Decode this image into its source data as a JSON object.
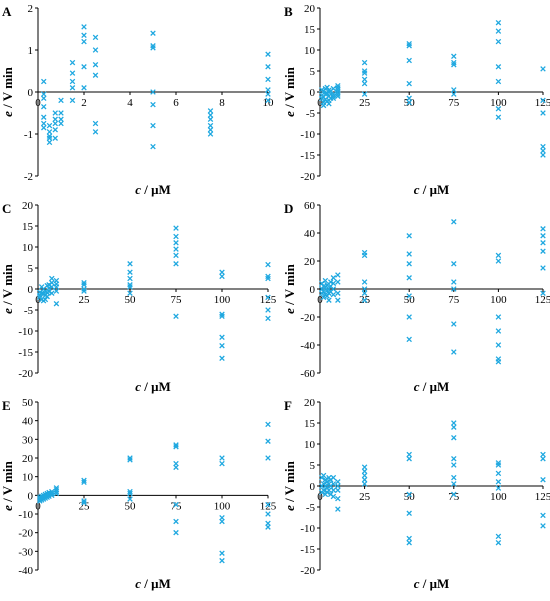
{
  "figure": {
    "marker_color": "#1fa8e0"
  },
  "chart_data": [
    {
      "panel": "A",
      "type": "scatter",
      "title": "",
      "xlabel_var": "c",
      "xlabel_unit": " / μM",
      "ylabel_var": "e",
      "ylabel_unit": " / V min",
      "xlim": [
        0,
        10
      ],
      "ylim": [
        -2,
        2
      ],
      "xticks": [
        0,
        2,
        4,
        6,
        8,
        10
      ],
      "yticks": [
        -2,
        -1,
        0,
        1,
        2
      ],
      "grid": false,
      "series": [
        {
          "x": [
            0.25,
            0.25,
            0.25,
            0.25,
            0.25,
            0.25,
            0.25,
            0.5,
            0.5,
            0.5,
            0.5,
            0.5,
            0.75,
            0.75,
            0.75,
            0.75,
            0.75,
            1,
            1,
            1,
            1,
            1.5,
            1.5,
            1.5,
            1.5,
            1.5,
            2,
            2,
            2,
            2,
            2,
            2.5,
            2.5,
            2.5,
            2.5,
            2.5,
            2.5,
            5,
            5,
            5,
            5,
            5,
            5,
            5,
            7.5,
            7.5,
            7.5,
            7.5,
            7.5,
            7.5,
            10,
            10,
            10,
            10,
            10,
            10
          ],
          "y": [
            0.25,
            -0.05,
            -0.15,
            -0.35,
            -0.6,
            -0.75,
            -0.85,
            -0.8,
            -0.95,
            -1.05,
            -1.1,
            -1.2,
            -0.5,
            -0.65,
            -0.75,
            -0.9,
            -1.1,
            -0.2,
            -0.5,
            -0.65,
            -0.75,
            0.7,
            0.45,
            0.25,
            0.1,
            -0.2,
            1.55,
            1.35,
            1.2,
            0.6,
            0.1,
            1.3,
            1.0,
            0.65,
            0.4,
            -0.75,
            -0.95,
            1.4,
            1.1,
            1.05,
            0,
            -0.3,
            -0.8,
            -1.3,
            -0.45,
            -0.55,
            -0.65,
            -0.8,
            -0.9,
            -1.0,
            0.9,
            0.6,
            0.3,
            0.05,
            -0.05,
            -0.2
          ]
        }
      ]
    },
    {
      "panel": "B",
      "type": "scatter",
      "title": "",
      "xlabel_var": "c",
      "xlabel_unit": " / μM",
      "ylabel_var": "e",
      "ylabel_unit": " / V min",
      "xlim": [
        0,
        125
      ],
      "ylim": [
        -20,
        20
      ],
      "xticks": [
        0,
        25,
        50,
        75,
        100,
        125
      ],
      "yticks": [
        -20,
        -15,
        -10,
        -5,
        0,
        5,
        10,
        15,
        20
      ],
      "grid": false,
      "series": [
        {
          "x": [
            1,
            1,
            1,
            2,
            2,
            2,
            2,
            3,
            3,
            3,
            4,
            4,
            4,
            5,
            5,
            5,
            5,
            6,
            6,
            6,
            7.5,
            7.5,
            7.5,
            7.5,
            10,
            10,
            10,
            10,
            10,
            10,
            25,
            25,
            25,
            25,
            25,
            25,
            50,
            50,
            50,
            50,
            50,
            50,
            75,
            75,
            75,
            75,
            75,
            100,
            100,
            100,
            100,
            100,
            100,
            100,
            125,
            125,
            125,
            125,
            125,
            125
          ],
          "y": [
            0.5,
            -0.8,
            -1.5,
            0.2,
            -1.2,
            -2.5,
            -3.2,
            0.8,
            -0.5,
            -1.8,
            1.1,
            -0.3,
            -2.2,
            0.4,
            -1.0,
            -2.0,
            -2.8,
            0.2,
            -0.5,
            -1.5,
            -0.5,
            -1.0,
            -1.5,
            0.8,
            1.5,
            1.0,
            0.5,
            0,
            -0.5,
            -1.0,
            7.0,
            5.0,
            4.5,
            3.0,
            2.0,
            -0.5,
            11.5,
            11.0,
            7.5,
            2.0,
            -1.5,
            -2.5,
            8.5,
            7.0,
            6.5,
            0.5,
            -0.5,
            16.5,
            14.5,
            12.0,
            6.0,
            2.5,
            -4.0,
            -6.0,
            5.5,
            -2.0,
            -5.0,
            -13.0,
            -14.0,
            -15.0
          ]
        }
      ]
    },
    {
      "panel": "C",
      "type": "scatter",
      "title": "",
      "xlabel_var": "c",
      "xlabel_unit": " / μM",
      "ylabel_var": "e",
      "ylabel_unit": " / V min",
      "xlim": [
        0,
        125
      ],
      "ylim": [
        -20,
        20
      ],
      "xticks": [
        0,
        25,
        50,
        75,
        100,
        125
      ],
      "yticks": [
        -20,
        -15,
        -10,
        -5,
        0,
        5,
        10,
        15,
        20
      ],
      "grid": false,
      "series": [
        {
          "x": [
            1,
            1,
            1,
            2,
            2,
            2,
            3,
            3,
            3,
            4,
            4,
            4,
            5,
            5,
            5,
            6,
            6,
            6,
            7.5,
            7.5,
            7.5,
            7.5,
            10,
            10,
            10,
            10,
            10,
            25,
            25,
            25,
            25,
            50,
            50,
            50,
            50,
            50,
            50,
            75,
            75,
            75,
            75,
            75,
            75,
            75,
            100,
            100,
            100,
            100,
            100,
            100,
            100,
            125,
            125,
            125,
            125,
            125,
            125
          ],
          "y": [
            -0.8,
            -1.5,
            -2.0,
            0.5,
            -1.0,
            -2.5,
            0,
            -1.2,
            -2.8,
            -0.5,
            -1.5,
            -2.5,
            0.8,
            -0.8,
            -1.8,
            1.0,
            0.2,
            -0.6,
            2.5,
            1.5,
            0.5,
            -1.0,
            2.0,
            1.2,
            0.5,
            -0.5,
            -3.5,
            1.5,
            1.0,
            0,
            -0.5,
            6.0,
            4.0,
            2.5,
            1.0,
            0.5,
            -1.0,
            14.5,
            12.5,
            11.0,
            9.5,
            8.0,
            6.0,
            -6.5,
            4.0,
            3.0,
            -6.0,
            -6.5,
            -11.5,
            -13.5,
            -16.5,
            5.8,
            3.0,
            2.5,
            -2.0,
            -5.0,
            -7.0
          ]
        }
      ]
    },
    {
      "panel": "D",
      "type": "scatter",
      "title": "",
      "xlabel_var": "c",
      "xlabel_unit": " / μM",
      "ylabel_var": "e",
      "ylabel_unit": " / V min",
      "xlim": [
        0,
        125
      ],
      "ylim": [
        -60,
        60
      ],
      "xticks": [
        0,
        25,
        50,
        75,
        100,
        125
      ],
      "yticks": [
        -60,
        -40,
        -20,
        0,
        20,
        40,
        60
      ],
      "grid": false,
      "series": [
        {
          "x": [
            1,
            1,
            1,
            2,
            2,
            2,
            3,
            3,
            3,
            4,
            4,
            4,
            5,
            5,
            5,
            6,
            6,
            6,
            7.5,
            7.5,
            7.5,
            7.5,
            10,
            10,
            10,
            10,
            25,
            25,
            25,
            25,
            25,
            25,
            50,
            50,
            50,
            50,
            50,
            50,
            50,
            75,
            75,
            75,
            75,
            75,
            75,
            100,
            100,
            100,
            100,
            100,
            100,
            100,
            125,
            125,
            125,
            125,
            125,
            125
          ],
          "y": [
            4,
            0,
            -3,
            2,
            -2,
            -6,
            6,
            1,
            -4,
            3,
            -1,
            -5,
            0,
            -3,
            -8,
            5,
            2,
            -2,
            8,
            4,
            0,
            -4,
            10,
            5,
            -3,
            -8,
            26,
            24,
            5,
            0,
            -3,
            -8,
            38,
            25,
            18,
            8,
            -5,
            -20,
            -36,
            48,
            18,
            5,
            0,
            -25,
            -45,
            24,
            20,
            -20,
            -30,
            -40,
            -50,
            -52,
            43,
            38,
            33,
            27,
            15,
            -3
          ]
        }
      ]
    },
    {
      "panel": "E",
      "type": "scatter",
      "title": "",
      "xlabel_var": "c",
      "xlabel_unit": " / μM",
      "ylabel_var": "e",
      "ylabel_unit": " / V min",
      "xlim": [
        0,
        125
      ],
      "ylim": [
        -40,
        50
      ],
      "xticks": [
        0,
        25,
        50,
        75,
        100,
        125
      ],
      "yticks": [
        -40,
        -30,
        -20,
        -10,
        0,
        10,
        20,
        30,
        40,
        50
      ],
      "grid": false,
      "series": [
        {
          "x": [
            1,
            1,
            1,
            2,
            2,
            2,
            3,
            3,
            3,
            4,
            4,
            4,
            5,
            5,
            5,
            6,
            6,
            6,
            7.5,
            7.5,
            7.5,
            10,
            10,
            10,
            10,
            25,
            25,
            25,
            25,
            50,
            50,
            50,
            50,
            50,
            75,
            75,
            75,
            75,
            75,
            75,
            75,
            100,
            100,
            100,
            100,
            100,
            100,
            125,
            125,
            125,
            125,
            125,
            125,
            125
          ],
          "y": [
            -1,
            -2,
            -3,
            -0.5,
            -1.5,
            -2.5,
            0,
            -1,
            -2,
            0.5,
            -0.5,
            -1.5,
            1,
            0,
            -1,
            1.5,
            0.5,
            -0.5,
            2,
            1,
            0,
            4,
            3,
            2,
            1,
            8,
            7,
            -3,
            -4,
            20,
            19,
            2,
            1,
            -2,
            27,
            26,
            17,
            15,
            -5,
            -14,
            -20,
            20,
            17,
            -12,
            -14,
            -31,
            -35,
            38,
            29,
            20,
            -5,
            -10,
            -15,
            -17
          ]
        }
      ]
    },
    {
      "panel": "F",
      "type": "scatter",
      "title": "",
      "xlabel_var": "c",
      "xlabel_unit": " / μM",
      "ylabel_var": "e",
      "ylabel_unit": " / V min",
      "xlim": [
        0,
        125
      ],
      "ylim": [
        -20,
        20
      ],
      "xticks": [
        0,
        25,
        50,
        75,
        100,
        125
      ],
      "yticks": [
        -20,
        -15,
        -10,
        -5,
        0,
        5,
        10,
        15,
        20
      ],
      "grid": false,
      "series": [
        {
          "x": [
            1,
            1,
            1,
            2,
            2,
            2,
            3,
            3,
            3,
            4,
            4,
            4,
            5,
            5,
            5,
            6,
            6,
            6,
            7.5,
            7.5,
            7.5,
            7.5,
            10,
            10,
            10,
            10,
            10,
            25,
            25,
            25,
            25,
            25,
            50,
            50,
            50,
            50,
            50,
            50,
            75,
            75,
            75,
            75,
            75,
            75,
            75,
            75,
            100,
            100,
            100,
            100,
            100,
            100,
            100,
            125,
            125,
            125,
            125,
            125
          ],
          "y": [
            2,
            0,
            -1.5,
            2.5,
            0.5,
            -1,
            1.5,
            0,
            -2,
            1,
            -0.5,
            -1.5,
            2,
            0.5,
            -1,
            1.5,
            0,
            -2,
            2,
            0.5,
            -1,
            -2.5,
            1,
            0,
            -1,
            -3,
            -5.5,
            4.5,
            3.5,
            2.5,
            1.5,
            0.5,
            7.5,
            6.5,
            -2,
            -6.5,
            -12.5,
            -13.5,
            15,
            14,
            11.5,
            6.5,
            5,
            2,
            0.5,
            -2,
            5.5,
            5,
            3,
            1,
            -0.5,
            -12,
            -13.5,
            7.5,
            6.5,
            1.5,
            -7,
            -9.5
          ]
        }
      ]
    }
  ]
}
